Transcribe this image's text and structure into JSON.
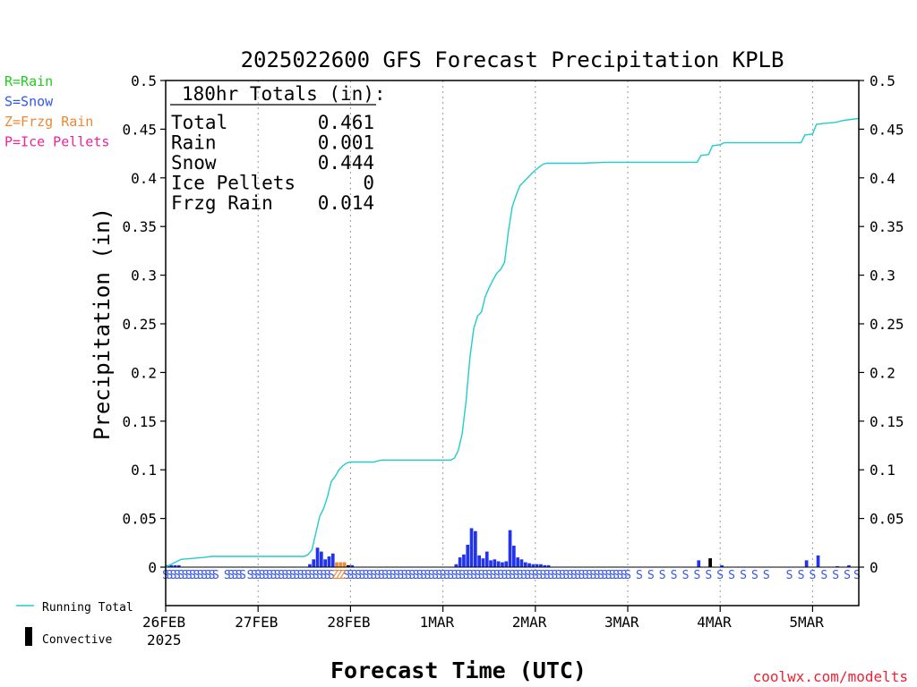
{
  "chart_data": {
    "type": "bar",
    "title": "2025022600 GFS Forecast Precipitation KPLB",
    "ylabel": "Precipitation (in)",
    "xlabel": "Forecast Time (UTC)",
    "ylim": [
      0,
      0.5
    ],
    "y_ticks": [
      "0",
      "0.05",
      "0.1",
      "0.15",
      "0.2",
      "0.25",
      "0.3",
      "0.35",
      "0.4",
      "0.45",
      "0.5"
    ],
    "x_hours_range": [
      0,
      180
    ],
    "x_ticks": [
      {
        "hour": 0,
        "label": "26FEB"
      },
      {
        "hour": 24,
        "label": "27FEB"
      },
      {
        "hour": 48,
        "label": "28FEB"
      },
      {
        "hour": 72,
        "label": "1MAR"
      },
      {
        "hour": 96,
        "label": "2MAR"
      },
      {
        "hour": 120,
        "label": "3MAR"
      },
      {
        "hour": 144,
        "label": "4MAR"
      },
      {
        "hour": 168,
        "label": "5MAR"
      }
    ],
    "year_label": "2025",
    "grid": "vertical dotted at day boundaries",
    "type_legend": [
      {
        "text": "R=Rain",
        "color": "#22cc22"
      },
      {
        "text": "S=Snow",
        "color": "#3355ee"
      },
      {
        "text": "Z=Frzg Rain",
        "color": "#ee8833"
      },
      {
        "text": "P=Ice Pellets",
        "color": "#ee2299"
      }
    ],
    "totals": {
      "header": "180hr Totals (in):",
      "rows": [
        {
          "label": "Total",
          "value": "0.461"
        },
        {
          "label": "Rain",
          "value": "0.001"
        },
        {
          "label": "Snow",
          "value": "0.444"
        },
        {
          "label": "Ice Pellets",
          "value": "0"
        },
        {
          "label": "Frzg Rain",
          "value": "0.014"
        }
      ]
    },
    "series": [
      {
        "name": "Running Total",
        "kind": "line",
        "color": "#22cccc",
        "points": [
          [
            0,
            0
          ],
          [
            1,
            0.002
          ],
          [
            2,
            0.004
          ],
          [
            4,
            0.008
          ],
          [
            7,
            0.009
          ],
          [
            10,
            0.01
          ],
          [
            12,
            0.011
          ],
          [
            18,
            0.011
          ],
          [
            24,
            0.011
          ],
          [
            30,
            0.011
          ],
          [
            36,
            0.011
          ],
          [
            37,
            0.013
          ],
          [
            38,
            0.018
          ],
          [
            39,
            0.035
          ],
          [
            40,
            0.052
          ],
          [
            41,
            0.06
          ],
          [
            42,
            0.072
          ],
          [
            43,
            0.088
          ],
          [
            44,
            0.093
          ],
          [
            45,
            0.1
          ],
          [
            46,
            0.104
          ],
          [
            47,
            0.107
          ],
          [
            48,
            0.108
          ],
          [
            50,
            0.108
          ],
          [
            54,
            0.108
          ],
          [
            56,
            0.11
          ],
          [
            60,
            0.11
          ],
          [
            66,
            0.11
          ],
          [
            70,
            0.11
          ],
          [
            74,
            0.11
          ],
          [
            75,
            0.112
          ],
          [
            76,
            0.12
          ],
          [
            77,
            0.137
          ],
          [
            78,
            0.17
          ],
          [
            79,
            0.215
          ],
          [
            80,
            0.245
          ],
          [
            81,
            0.258
          ],
          [
            82,
            0.262
          ],
          [
            83,
            0.278
          ],
          [
            84,
            0.287
          ],
          [
            85,
            0.295
          ],
          [
            86,
            0.302
          ],
          [
            87,
            0.306
          ],
          [
            88,
            0.313
          ],
          [
            89,
            0.345
          ],
          [
            90,
            0.37
          ],
          [
            91,
            0.382
          ],
          [
            92,
            0.392
          ],
          [
            93,
            0.396
          ],
          [
            94,
            0.4
          ],
          [
            95,
            0.404
          ],
          [
            96,
            0.408
          ],
          [
            97,
            0.411
          ],
          [
            98,
            0.414
          ],
          [
            99,
            0.415
          ],
          [
            102,
            0.415
          ],
          [
            108,
            0.415
          ],
          [
            114,
            0.416
          ],
          [
            120,
            0.416
          ],
          [
            126,
            0.416
          ],
          [
            132,
            0.416
          ],
          [
            138,
            0.416
          ],
          [
            139,
            0.423
          ],
          [
            141,
            0.424
          ],
          [
            142,
            0.433
          ],
          [
            144,
            0.434
          ],
          [
            145,
            0.436
          ],
          [
            150,
            0.436
          ],
          [
            156,
            0.436
          ],
          [
            162,
            0.436
          ],
          [
            165,
            0.436
          ],
          [
            166,
            0.444
          ],
          [
            168,
            0.445
          ],
          [
            169,
            0.455
          ],
          [
            171,
            0.456
          ],
          [
            174,
            0.457
          ],
          [
            176,
            0.459
          ],
          [
            178,
            0.46
          ],
          [
            180,
            0.461
          ]
        ]
      },
      {
        "name": "Snow",
        "kind": "bars",
        "color": "#2233ee",
        "bars": [
          [
            0,
            0.002
          ],
          [
            1,
            0.002
          ],
          [
            2,
            0.002
          ],
          [
            3,
            0.002
          ],
          [
            37,
            0.003
          ],
          [
            38,
            0.008
          ],
          [
            39,
            0.02
          ],
          [
            40,
            0.016
          ],
          [
            41,
            0.008
          ],
          [
            42,
            0.011
          ],
          [
            43,
            0.014
          ],
          [
            48,
            0.002
          ],
          [
            75,
            0.003
          ],
          [
            76,
            0.01
          ],
          [
            77,
            0.013
          ],
          [
            78,
            0.023
          ],
          [
            79,
            0.04
          ],
          [
            80,
            0.037
          ],
          [
            81,
            0.012
          ],
          [
            82,
            0.009
          ],
          [
            83,
            0.016
          ],
          [
            84,
            0.007
          ],
          [
            85,
            0.008
          ],
          [
            86,
            0.006
          ],
          [
            87,
            0.005
          ],
          [
            88,
            0.006
          ],
          [
            89,
            0.038
          ],
          [
            90,
            0.022
          ],
          [
            91,
            0.01
          ],
          [
            92,
            0.008
          ],
          [
            93,
            0.005
          ],
          [
            94,
            0.004
          ],
          [
            95,
            0.003
          ],
          [
            96,
            0.003
          ],
          [
            97,
            0.003
          ],
          [
            98,
            0.002
          ],
          [
            99,
            0.002
          ],
          [
            138,
            0.007
          ],
          [
            141,
            0.009
          ],
          [
            144,
            0.002
          ],
          [
            166,
            0.007
          ],
          [
            169,
            0.012
          ],
          [
            174,
            0.001
          ],
          [
            177,
            0.002
          ]
        ]
      },
      {
        "name": "Freezing Rain",
        "kind": "bars",
        "color": "#ee8833",
        "bars": [
          [
            44,
            0.005
          ],
          [
            45,
            0.005
          ],
          [
            46,
            0.005
          ]
        ]
      },
      {
        "name": "Convective",
        "kind": "bars",
        "color": "#000000",
        "bars": [
          [
            47,
            0.002
          ],
          [
            141,
            0.009
          ]
        ]
      }
    ],
    "precip_type_markers": {
      "text_per_mark": "S",
      "color": "#3355ee",
      "hours_dense": [
        [
          0,
          13
        ],
        [
          16,
          20
        ],
        [
          22,
          23
        ],
        [
          24,
          36
        ],
        [
          37,
          43
        ],
        [
          47,
          73
        ],
        [
          74,
          120
        ]
      ],
      "hours_sparse": [
        123,
        126,
        129,
        132,
        135,
        138,
        141,
        144,
        147,
        150,
        153,
        156,
        162,
        165,
        168,
        171,
        174,
        177,
        180
      ],
      "z_hours": [
        44,
        45,
        46
      ]
    },
    "bottom_legend": [
      {
        "text": "Running Total",
        "color": "#22cccc"
      },
      {
        "text": "Convective",
        "color": "#000000"
      }
    ],
    "y_right_axis": true,
    "credit": "coolwx.com/modelts"
  }
}
